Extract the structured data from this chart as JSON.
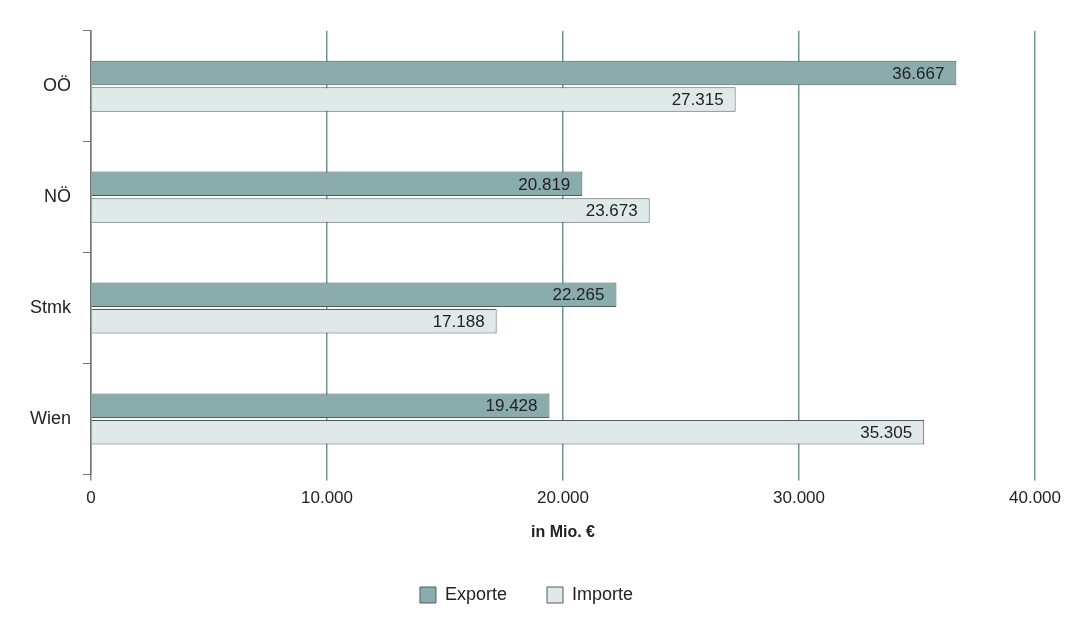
{
  "chart_data": {
    "type": "bar",
    "orientation": "horizontal",
    "xlabel": "in Mio. €",
    "categories": [
      "OÖ",
      "NÖ",
      "Stmk",
      "Wien"
    ],
    "series": [
      {
        "name": "Exporte",
        "color": "#8aacad",
        "values": [
          36667,
          20819,
          22265,
          19428
        ],
        "value_labels": [
          "36.667",
          "20.819",
          "22.265",
          "19.428"
        ]
      },
      {
        "name": "Importe",
        "color": "#dfe9e9",
        "values": [
          27315,
          23673,
          17188,
          35305
        ],
        "value_labels": [
          "27.315",
          "23.673",
          "17.188",
          "35.305"
        ]
      }
    ],
    "xlim": [
      0,
      40000
    ],
    "xticks": [
      0,
      {
        "value": 10000,
        "label": "10.000"
      },
      {
        "value": 20000,
        "label": "20.000"
      },
      {
        "value": 30000,
        "label": "30.000"
      },
      {
        "value": 40000,
        "label": "40.000"
      }
    ],
    "grid": "x",
    "legend": "bottom"
  }
}
